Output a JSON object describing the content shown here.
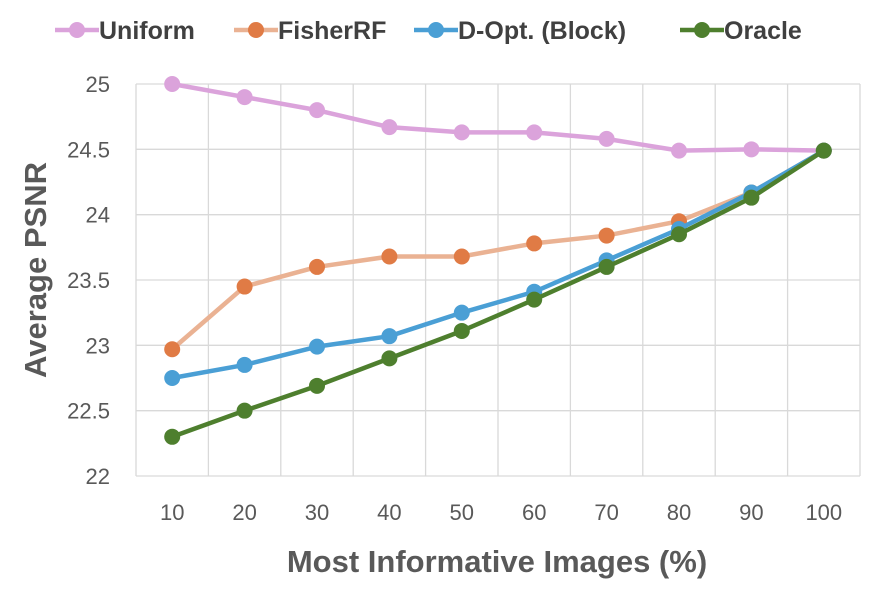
{
  "chart_data": {
    "type": "line",
    "title": "",
    "xlabel": "Most Informative Images (%)",
    "ylabel": "Average PSNR",
    "x": [
      10,
      20,
      30,
      40,
      50,
      60,
      70,
      80,
      90,
      100
    ],
    "x_tick_labels": [
      "10",
      "20",
      "30",
      "40",
      "50",
      "60",
      "70",
      "80",
      "90",
      "100"
    ],
    "ylim": [
      22,
      25
    ],
    "y_ticks": [
      22,
      22.5,
      23,
      23.5,
      24,
      24.5,
      25
    ],
    "y_tick_labels": [
      "22",
      "22.5",
      "23",
      "23.5",
      "24",
      "24.5",
      "25"
    ],
    "grid": true,
    "legend_position": "top",
    "series": [
      {
        "name": "Uniform",
        "color": "#dba3db",
        "values": [
          25.0,
          24.9,
          24.8,
          24.67,
          24.63,
          24.63,
          24.58,
          24.49,
          24.5,
          24.49
        ]
      },
      {
        "name": "FisherRF",
        "color": "#e07b45",
        "line_color": "#eab293",
        "values": [
          22.97,
          23.45,
          23.6,
          23.68,
          23.68,
          23.78,
          23.84,
          23.95,
          24.17,
          24.49
        ]
      },
      {
        "name": "D-Opt. (Block)",
        "color": "#4a9fd5",
        "values": [
          22.75,
          22.85,
          22.99,
          23.07,
          23.25,
          23.41,
          23.65,
          23.89,
          24.17,
          24.49
        ]
      },
      {
        "name": "Oracle",
        "color": "#4e7f2e",
        "values": [
          22.3,
          22.5,
          22.69,
          22.9,
          23.11,
          23.35,
          23.6,
          23.85,
          24.13,
          24.49
        ]
      }
    ]
  }
}
